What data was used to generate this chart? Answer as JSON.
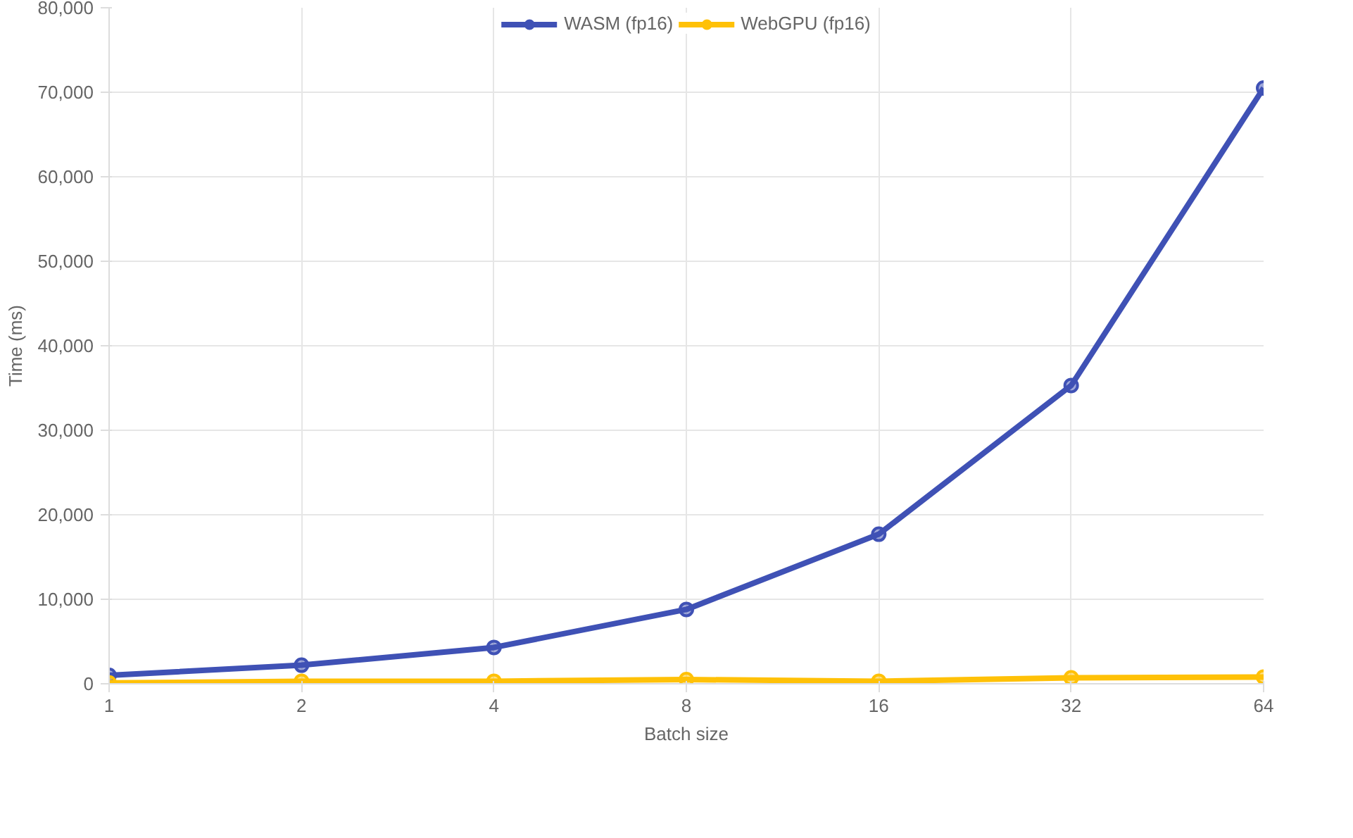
{
  "chart_data": {
    "type": "line",
    "xlabel": "Batch size",
    "ylabel": "Time (ms)",
    "categories": [
      "1",
      "2",
      "4",
      "8",
      "16",
      "32",
      "64"
    ],
    "series": [
      {
        "name": "WASM (fp16)",
        "color": "#3f51b5",
        "values": [
          1000,
          2200,
          4300,
          8800,
          17700,
          35300,
          70500
        ]
      },
      {
        "name": "WebGPU (fp16)",
        "color": "#ffc107",
        "values": [
          100,
          300,
          300,
          500,
          300,
          700,
          800
        ]
      }
    ],
    "ylim": [
      0,
      80000
    ],
    "yticks": [
      0,
      {
        "value": 10000,
        "label": "10,000"
      },
      {
        "value": 20000,
        "label": "20,000"
      },
      {
        "value": 30000,
        "label": "30,000"
      },
      {
        "value": 40000,
        "label": "40,000"
      },
      {
        "value": 50000,
        "label": "50,000"
      },
      {
        "value": 60000,
        "label": "60,000"
      },
      {
        "value": 70000,
        "label": "70,000"
      },
      {
        "value": 80000,
        "label": "80,000"
      }
    ],
    "grid": true,
    "legend": "top",
    "marker": "circle",
    "line_style": "solid"
  }
}
